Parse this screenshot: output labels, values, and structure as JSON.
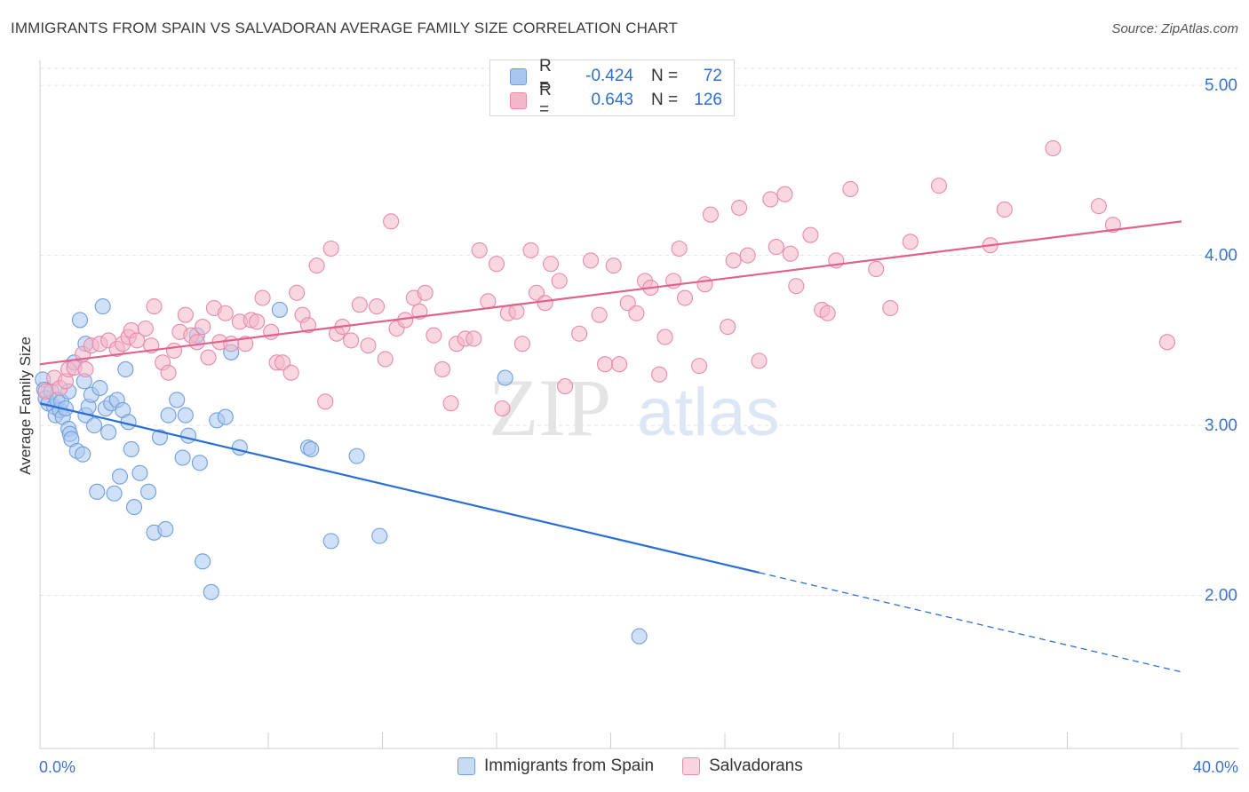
{
  "header": {
    "title": "IMMIGRANTS FROM SPAIN VS SALVADORAN AVERAGE FAMILY SIZE CORRELATION CHART",
    "source": "Source: ZipAtlas.com"
  },
  "watermark": {
    "part1": "ZIP",
    "part2": "atlas"
  },
  "stats_legend": {
    "rows": [
      {
        "r_label": "R =",
        "r_value": "-0.424",
        "n_label": "N =",
        "n_value": "72",
        "color": "#a9c6ee"
      },
      {
        "r_label": "R =",
        "r_value": "0.643",
        "n_label": "N =",
        "n_value": "126",
        "color": "#f4b7c9"
      }
    ]
  },
  "chart_data": {
    "type": "scatter",
    "title": "IMMIGRANTS FROM SPAIN VS SALVADORAN AVERAGE FAMILY SIZE CORRELATION CHART",
    "xlabel": "",
    "ylabel": "Average Family Size",
    "xlim": [
      0,
      40
    ],
    "ylim": [
      1.1,
      5.1
    ],
    "x_tick_labels": [
      "0.0%",
      "40.0%"
    ],
    "y_ticks": [
      2.0,
      3.0,
      4.0,
      5.0
    ],
    "y_tick_labels": [
      "2.00",
      "3.00",
      "4.00",
      "5.00"
    ],
    "grid": true,
    "legend_position": "bottom",
    "series": [
      {
        "name": "Immigrants from Spain",
        "color": "#6f9fe0",
        "fill": "#a9c6ee",
        "line_color": "#2a6fd6",
        "trend": {
          "x_start": 0,
          "y_start": 3.13,
          "x_solid_end": 25.2,
          "x_end": 40,
          "y_end": 1.55
        },
        "points": [
          [
            0.1,
            3.27
          ],
          [
            0.15,
            3.21
          ],
          [
            0.2,
            3.16
          ],
          [
            0.3,
            3.13
          ],
          [
            0.4,
            3.2
          ],
          [
            0.5,
            3.11
          ],
          [
            0.55,
            3.06
          ],
          [
            0.6,
            3.15
          ],
          [
            0.7,
            3.09
          ],
          [
            0.75,
            3.14
          ],
          [
            0.8,
            3.05
          ],
          [
            0.9,
            3.1
          ],
          [
            1.0,
            3.2
          ],
          [
            1.0,
            2.98
          ],
          [
            1.05,
            2.95
          ],
          [
            1.1,
            2.92
          ],
          [
            1.2,
            3.37
          ],
          [
            1.3,
            2.85
          ],
          [
            1.4,
            3.62
          ],
          [
            1.5,
            2.83
          ],
          [
            1.55,
            3.26
          ],
          [
            1.6,
            3.06
          ],
          [
            1.7,
            3.11
          ],
          [
            1.6,
            3.48
          ],
          [
            1.8,
            3.18
          ],
          [
            1.9,
            3.0
          ],
          [
            2.0,
            2.61
          ],
          [
            2.1,
            3.22
          ],
          [
            2.2,
            3.7
          ],
          [
            2.3,
            3.1
          ],
          [
            2.4,
            2.96
          ],
          [
            2.5,
            3.13
          ],
          [
            2.6,
            2.6
          ],
          [
            2.7,
            3.15
          ],
          [
            2.8,
            2.7
          ],
          [
            2.9,
            3.09
          ],
          [
            3.0,
            3.33
          ],
          [
            3.1,
            3.02
          ],
          [
            3.2,
            2.86
          ],
          [
            3.3,
            2.52
          ],
          [
            3.5,
            2.72
          ],
          [
            3.8,
            2.61
          ],
          [
            4.0,
            2.37
          ],
          [
            4.2,
            2.93
          ],
          [
            4.4,
            2.39
          ],
          [
            4.5,
            3.06
          ],
          [
            4.8,
            3.15
          ],
          [
            5.0,
            2.81
          ],
          [
            5.1,
            3.06
          ],
          [
            5.2,
            2.94
          ],
          [
            5.5,
            3.53
          ],
          [
            5.6,
            2.78
          ],
          [
            5.7,
            2.2
          ],
          [
            6.0,
            2.02
          ],
          [
            6.2,
            3.03
          ],
          [
            6.5,
            3.05
          ],
          [
            6.7,
            3.43
          ],
          [
            7.0,
            2.87
          ],
          [
            8.4,
            3.68
          ],
          [
            9.4,
            2.87
          ],
          [
            9.5,
            2.86
          ],
          [
            10.2,
            2.32
          ],
          [
            11.1,
            2.82
          ],
          [
            11.9,
            2.35
          ],
          [
            16.3,
            3.28
          ],
          [
            21.0,
            1.76
          ]
        ]
      },
      {
        "name": "Salvadorans",
        "color": "#e88aab",
        "fill": "#f4b7c9",
        "line_color": "#e0608e",
        "trend": {
          "x_start": 0,
          "y_start": 3.36,
          "x_end": 40,
          "y_end": 4.2
        },
        "points": [
          [
            0.2,
            3.2
          ],
          [
            0.5,
            3.28
          ],
          [
            0.7,
            3.22
          ],
          [
            0.9,
            3.26
          ],
          [
            1.0,
            3.33
          ],
          [
            1.2,
            3.34
          ],
          [
            1.5,
            3.42
          ],
          [
            1.6,
            3.33
          ],
          [
            1.8,
            3.47
          ],
          [
            2.1,
            3.48
          ],
          [
            2.4,
            3.5
          ],
          [
            2.7,
            3.45
          ],
          [
            2.9,
            3.48
          ],
          [
            3.1,
            3.52
          ],
          [
            3.2,
            3.56
          ],
          [
            3.4,
            3.5
          ],
          [
            3.7,
            3.57
          ],
          [
            3.9,
            3.47
          ],
          [
            4.0,
            3.7
          ],
          [
            4.3,
            3.37
          ],
          [
            4.5,
            3.31
          ],
          [
            4.7,
            3.44
          ],
          [
            4.9,
            3.55
          ],
          [
            5.1,
            3.65
          ],
          [
            5.3,
            3.53
          ],
          [
            5.5,
            3.49
          ],
          [
            5.7,
            3.58
          ],
          [
            5.9,
            3.4
          ],
          [
            6.1,
            3.69
          ],
          [
            6.3,
            3.49
          ],
          [
            6.5,
            3.66
          ],
          [
            6.7,
            3.48
          ],
          [
            7.0,
            3.61
          ],
          [
            7.2,
            3.48
          ],
          [
            7.4,
            3.62
          ],
          [
            7.6,
            3.61
          ],
          [
            7.8,
            3.75
          ],
          [
            8.1,
            3.55
          ],
          [
            8.3,
            3.37
          ],
          [
            8.5,
            3.37
          ],
          [
            8.8,
            3.31
          ],
          [
            9.0,
            3.78
          ],
          [
            9.2,
            3.65
          ],
          [
            9.4,
            3.59
          ],
          [
            9.7,
            3.94
          ],
          [
            10.0,
            3.14
          ],
          [
            10.2,
            4.04
          ],
          [
            10.4,
            3.54
          ],
          [
            10.6,
            3.58
          ],
          [
            10.9,
            3.5
          ],
          [
            11.2,
            3.71
          ],
          [
            11.5,
            3.47
          ],
          [
            11.8,
            3.7
          ],
          [
            12.1,
            3.39
          ],
          [
            12.3,
            4.2
          ],
          [
            12.5,
            3.57
          ],
          [
            12.8,
            3.62
          ],
          [
            13.1,
            3.75
          ],
          [
            13.3,
            3.67
          ],
          [
            13.5,
            3.78
          ],
          [
            13.8,
            3.53
          ],
          [
            14.1,
            3.33
          ],
          [
            14.4,
            3.13
          ],
          [
            14.6,
            3.48
          ],
          [
            14.9,
            3.51
          ],
          [
            15.2,
            3.51
          ],
          [
            15.4,
            4.03
          ],
          [
            15.7,
            3.73
          ],
          [
            16.0,
            3.95
          ],
          [
            16.2,
            3.1
          ],
          [
            16.4,
            3.66
          ],
          [
            16.7,
            3.67
          ],
          [
            16.9,
            3.48
          ],
          [
            17.2,
            4.03
          ],
          [
            17.4,
            3.78
          ],
          [
            17.7,
            3.72
          ],
          [
            17.9,
            3.95
          ],
          [
            18.2,
            3.85
          ],
          [
            18.4,
            3.23
          ],
          [
            18.9,
            3.54
          ],
          [
            19.3,
            3.97
          ],
          [
            19.6,
            3.65
          ],
          [
            19.8,
            3.36
          ],
          [
            20.1,
            3.94
          ],
          [
            20.3,
            3.36
          ],
          [
            20.6,
            3.72
          ],
          [
            20.9,
            3.66
          ],
          [
            21.2,
            3.85
          ],
          [
            21.4,
            3.81
          ],
          [
            21.7,
            3.3
          ],
          [
            21.9,
            3.52
          ],
          [
            22.2,
            3.85
          ],
          [
            22.4,
            4.04
          ],
          [
            22.6,
            3.75
          ],
          [
            23.1,
            3.35
          ],
          [
            23.3,
            3.83
          ],
          [
            23.5,
            4.24
          ],
          [
            24.1,
            3.58
          ],
          [
            24.3,
            3.97
          ],
          [
            24.5,
            4.28
          ],
          [
            24.8,
            4.0
          ],
          [
            25.2,
            3.38
          ],
          [
            25.6,
            4.33
          ],
          [
            25.8,
            4.05
          ],
          [
            26.1,
            4.36
          ],
          [
            26.3,
            4.01
          ],
          [
            26.5,
            3.82
          ],
          [
            27.0,
            4.12
          ],
          [
            27.4,
            3.68
          ],
          [
            27.6,
            3.66
          ],
          [
            27.9,
            3.97
          ],
          [
            28.4,
            4.39
          ],
          [
            29.3,
            3.92
          ],
          [
            29.8,
            3.69
          ],
          [
            30.5,
            4.08
          ],
          [
            31.5,
            4.41
          ],
          [
            33.3,
            4.06
          ],
          [
            33.8,
            4.27
          ],
          [
            35.5,
            4.63
          ],
          [
            37.1,
            4.29
          ],
          [
            37.6,
            4.18
          ],
          [
            39.5,
            3.49
          ]
        ]
      }
    ]
  }
}
